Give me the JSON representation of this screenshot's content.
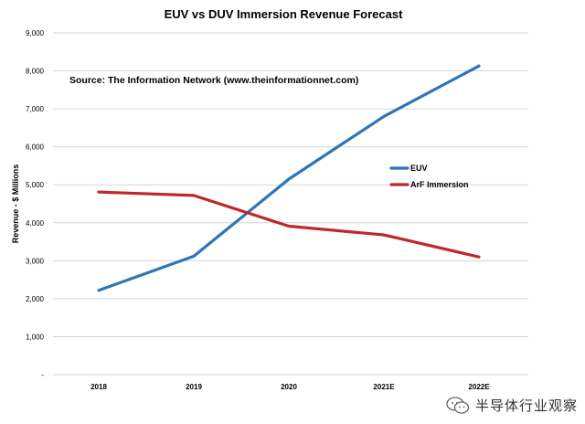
{
  "chart_data": {
    "type": "line",
    "title": "EUV vs DUV Immersion Revenue Forecast",
    "ylabel": "Revenue - $ Millions",
    "xlabel": "",
    "categories": [
      "2018",
      "2019",
      "2020",
      "2021E",
      "2022E"
    ],
    "ylim": [
      0,
      9000
    ],
    "yticks": [
      {
        "value": 0,
        "label": "-"
      },
      {
        "value": 1000,
        "label": "1,000"
      },
      {
        "value": 2000,
        "label": "2,000"
      },
      {
        "value": 3000,
        "label": "3,000"
      },
      {
        "value": 4000,
        "label": "4,000"
      },
      {
        "value": 5000,
        "label": "5,000"
      },
      {
        "value": 6000,
        "label": "6,000"
      },
      {
        "value": 7000,
        "label": "7,000"
      },
      {
        "value": 8000,
        "label": "8,000"
      },
      {
        "value": 9000,
        "label": "9,000"
      }
    ],
    "grid": true,
    "legend_position": "right-middle",
    "annotation": "Source: The Information Network (www.theinformationnet.com)",
    "series": [
      {
        "name": "EUV",
        "color": "#2e75b6",
        "values": [
          2220,
          3120,
          5150,
          6800,
          8130
        ]
      },
      {
        "name": "ArF Immersion",
        "color": "#c0272d",
        "values": [
          4810,
          4720,
          3910,
          3680,
          3100
        ]
      }
    ]
  },
  "watermark": {
    "text": "半导体行业观察",
    "icon": "wechat-icon"
  }
}
